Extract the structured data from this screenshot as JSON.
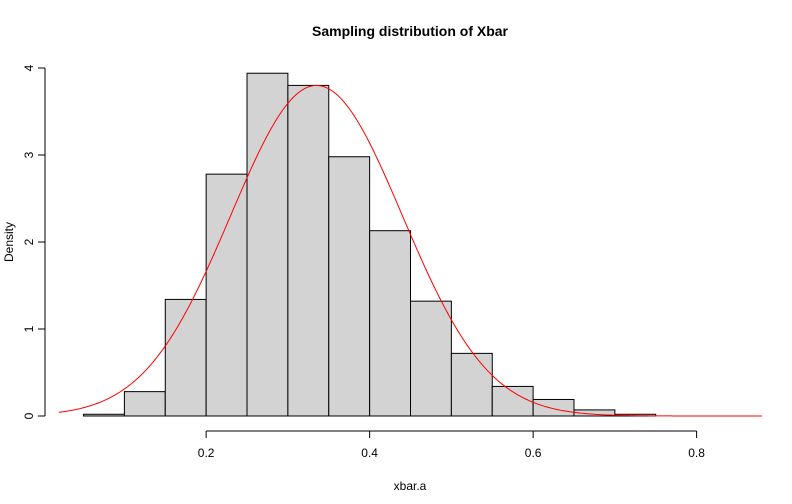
{
  "chart_data": {
    "type": "bar",
    "title": "Sampling distribution of Xbar",
    "xlabel": "xbar.a",
    "ylabel": "Density",
    "xlim": [
      0.02,
      0.88
    ],
    "ylim": [
      0,
      4
    ],
    "x_ticks": [
      {
        "value": 0.2,
        "label": "0.2"
      },
      {
        "value": 0.4,
        "label": "0.4"
      },
      {
        "value": 0.6,
        "label": "0.6"
      },
      {
        "value": 0.8,
        "label": "0.8"
      }
    ],
    "y_ticks": [
      {
        "value": 0,
        "label": "0"
      },
      {
        "value": 1,
        "label": "1"
      },
      {
        "value": 2,
        "label": "2"
      },
      {
        "value": 3,
        "label": "3"
      },
      {
        "value": 4,
        "label": "4"
      }
    ],
    "bins": [
      {
        "start": 0.05,
        "end": 0.1,
        "density": 0.02
      },
      {
        "start": 0.1,
        "end": 0.15,
        "density": 0.28
      },
      {
        "start": 0.15,
        "end": 0.2,
        "density": 1.34
      },
      {
        "start": 0.2,
        "end": 0.25,
        "density": 2.78
      },
      {
        "start": 0.25,
        "end": 0.3,
        "density": 3.94
      },
      {
        "start": 0.3,
        "end": 0.35,
        "density": 3.8
      },
      {
        "start": 0.35,
        "end": 0.4,
        "density": 2.98
      },
      {
        "start": 0.4,
        "end": 0.45,
        "density": 2.13
      },
      {
        "start": 0.45,
        "end": 0.5,
        "density": 1.32
      },
      {
        "start": 0.5,
        "end": 0.55,
        "density": 0.72
      },
      {
        "start": 0.55,
        "end": 0.6,
        "density": 0.34
      },
      {
        "start": 0.6,
        "end": 0.65,
        "density": 0.19
      },
      {
        "start": 0.65,
        "end": 0.7,
        "density": 0.07
      },
      {
        "start": 0.7,
        "end": 0.75,
        "density": 0.02
      }
    ],
    "curve": {
      "type": "normal-density",
      "mean": 0.335,
      "sd": 0.105,
      "x_range": [
        0.02,
        0.88
      ],
      "color": "#ff0000"
    },
    "bar_fill": "#d3d3d3",
    "bar_stroke": "#000000",
    "grid": false,
    "legend": "none"
  }
}
